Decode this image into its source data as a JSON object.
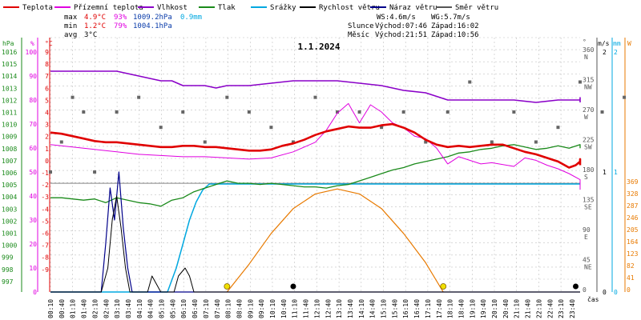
{
  "chart_data": {
    "type": "line",
    "title": "1.1.2024",
    "legend": [
      {
        "name": "Teplota",
        "color": "#e00000"
      },
      {
        "name": "Přízemní teplota",
        "color": "#e000e0"
      },
      {
        "name": "Vlhkost",
        "color": "#8a00c8"
      },
      {
        "name": "Tlak",
        "color": "#1a8a1a"
      },
      {
        "name": "Srážky",
        "color": "#00a8e0"
      },
      {
        "name": "Rychlost větru",
        "color": "#000000"
      },
      {
        "name": "Náraz větru",
        "color": "#00008a"
      },
      {
        "name": "Směr větru",
        "color": "#555555"
      }
    ],
    "stats": {
      "max": {
        "label": "max",
        "temp": "4.9°C",
        "hum": "93%",
        "press": "1009.2hPa",
        "rain": "0.9mm"
      },
      "min": {
        "label": "min",
        "temp": "1.2°C",
        "hum": "79%",
        "press": "1004.1hPa"
      },
      "avg": {
        "label": "avg",
        "temp": "3°C"
      }
    },
    "info": {
      "ws": "WS:4.6m/s",
      "wg": "WG:5.7m/s",
      "sun": "Slunce",
      "sun_rise": "Východ:07:46",
      "sun_set": "Západ:16:02",
      "moon": "Měsíc",
      "moon_rise": "Východ:21:51",
      "moon_set": "Západ:10:56"
    },
    "axes": {
      "hpa_title": "hPa",
      "hum_title": "%",
      "temp_title": "°C",
      "dir_title": "°",
      "wind_title": "m/s",
      "rain_title": "mm",
      "w_title": "W",
      "x_title": "čas",
      "hpa_ticks": [
        "1016",
        "1015",
        "1014",
        "1013",
        "1012",
        "1011",
        "1010",
        "1009",
        "1008",
        "1007",
        "1006",
        "1005",
        "1004",
        "1003",
        "1002",
        "1001",
        "1000",
        "999",
        "998",
        "997"
      ],
      "hum_ticks": [
        "100",
        "90",
        "80",
        "70",
        "60",
        "50",
        "40",
        "30",
        "20",
        "10",
        "0"
      ],
      "temp_ticks": [
        "9",
        "8",
        "7",
        "6",
        "5",
        "4",
        "3",
        "2",
        "1",
        "0",
        "-1",
        "-2",
        "-3",
        "-4",
        "-5",
        "-6",
        "-7",
        "-8",
        "-9"
      ],
      "dir_ticks": [
        {
          "deg": "360",
          "name": "N"
        },
        {
          "deg": "315",
          "name": "NW"
        },
        {
          "deg": "270",
          "name": "W"
        },
        {
          "deg": "225",
          "name": "SW"
        },
        {
          "deg": "180",
          "name": "S"
        },
        {
          "deg": "135",
          "name": "SE"
        },
        {
          "deg": "90",
          "name": "E"
        },
        {
          "deg": "45",
          "name": "NE"
        },
        {
          "deg": "0",
          "name": ""
        }
      ],
      "wind_ticks": [
        "2",
        "1",
        "0"
      ],
      "rain_ticks": [
        "2",
        "1",
        "0"
      ],
      "w_ticks": [
        "369",
        "328",
        "287",
        "246",
        "205",
        "164",
        "123",
        "82",
        "41",
        "0"
      ],
      "time_ticks": [
        "00:10",
        "00:40",
        "01:10",
        "01:40",
        "02:10",
        "02:40",
        "03:10",
        "03:40",
        "04:10",
        "04:40",
        "05:10",
        "05:40",
        "06:10",
        "06:40",
        "07:10",
        "07:40",
        "08:10",
        "08:40",
        "09:10",
        "09:40",
        "10:10",
        "10:40",
        "11:10",
        "11:40",
        "12:10",
        "12:40",
        "13:10",
        "13:40",
        "14:10",
        "14:40",
        "15:10",
        "15:40",
        "16:10",
        "16:40",
        "17:10",
        "17:40",
        "18:10",
        "18:40",
        "19:10",
        "19:40",
        "20:10",
        "20:40",
        "21:10",
        "21:40",
        "22:10",
        "22:40",
        "23:10",
        "23:40"
      ]
    },
    "x_range": [
      0,
      24
    ],
    "temp_range": [
      -9,
      10
    ],
    "hum_range": [
      0,
      100
    ],
    "press_range": [
      997,
      1016.5
    ],
    "dir_range": [
      0,
      360
    ],
    "solar_range": [
      0,
      369
    ],
    "series": {
      "temperature": [
        [
          0,
          4.2
        ],
        [
          0.5,
          4.1
        ],
        [
          1,
          3.9
        ],
        [
          1.5,
          3.7
        ],
        [
          2,
          3.5
        ],
        [
          2.5,
          3.4
        ],
        [
          3,
          3.4
        ],
        [
          3.5,
          3.3
        ],
        [
          4,
          3.2
        ],
        [
          4.5,
          3.1
        ],
        [
          5,
          3.0
        ],
        [
          5.5,
          3.0
        ],
        [
          6,
          3.1
        ],
        [
          6.5,
          3.1
        ],
        [
          7,
          3.0
        ],
        [
          7.5,
          3.0
        ],
        [
          8,
          2.9
        ],
        [
          8.5,
          2.8
        ],
        [
          9,
          2.7
        ],
        [
          9.5,
          2.7
        ],
        [
          10,
          2.8
        ],
        [
          10.5,
          3.1
        ],
        [
          11,
          3.3
        ],
        [
          11.5,
          3.6
        ],
        [
          12,
          4.0
        ],
        [
          12.5,
          4.3
        ],
        [
          13,
          4.5
        ],
        [
          13.5,
          4.7
        ],
        [
          14,
          4.6
        ],
        [
          14.5,
          4.6
        ],
        [
          15,
          4.8
        ],
        [
          15.5,
          4.9
        ],
        [
          16,
          4.6
        ],
        [
          16.5,
          4.2
        ],
        [
          17,
          3.6
        ],
        [
          17.5,
          3.2
        ],
        [
          18,
          3.0
        ],
        [
          18.5,
          3.1
        ],
        [
          19,
          3.0
        ],
        [
          19.5,
          3.1
        ],
        [
          20,
          3.2
        ],
        [
          20.5,
          3.2
        ],
        [
          21,
          2.9
        ],
        [
          21.5,
          2.6
        ],
        [
          22,
          2.4
        ],
        [
          22.5,
          2.1
        ],
        [
          23,
          1.8
        ],
        [
          23.5,
          1.3
        ],
        [
          23.8,
          1.5
        ],
        [
          24,
          1.8
        ],
        [
          24.5,
          1.6
        ],
        [
          25,
          1.9
        ],
        [
          25.5,
          2.0
        ],
        [
          26,
          1.7
        ],
        [
          26.5,
          1.5
        ]
      ],
      "ground_temperature": [
        [
          0,
          3.2
        ],
        [
          1,
          3.0
        ],
        [
          2,
          2.8
        ],
        [
          3,
          2.6
        ],
        [
          4,
          2.4
        ],
        [
          5,
          2.3
        ],
        [
          6,
          2.2
        ],
        [
          7,
          2.2
        ],
        [
          8,
          2.1
        ],
        [
          9,
          2.0
        ],
        [
          10,
          2.1
        ],
        [
          11,
          2.6
        ],
        [
          12,
          3.4
        ],
        [
          12.5,
          4.4
        ],
        [
          13,
          5.8
        ],
        [
          13.5,
          6.6
        ],
        [
          14,
          5.0
        ],
        [
          14.5,
          6.5
        ],
        [
          15,
          5.9
        ],
        [
          15.5,
          5.0
        ],
        [
          16,
          4.6
        ],
        [
          16.5,
          3.9
        ],
        [
          17,
          3.7
        ],
        [
          17.5,
          2.9
        ],
        [
          18,
          1.6
        ],
        [
          18.5,
          2.2
        ],
        [
          19,
          1.9
        ],
        [
          19.5,
          1.6
        ],
        [
          20,
          1.7
        ],
        [
          21,
          1.4
        ],
        [
          21.5,
          2.1
        ],
        [
          22,
          1.9
        ],
        [
          22.5,
          1.5
        ],
        [
          23,
          1.2
        ],
        [
          23.5,
          0.8
        ],
        [
          24,
          0.3
        ],
        [
          24.5,
          0.2
        ],
        [
          25,
          0.3
        ],
        [
          25.5,
          -0.5
        ],
        [
          26,
          -0.3
        ],
        [
          26.5,
          -0.4
        ]
      ],
      "humidity": [
        [
          0,
          92
        ],
        [
          3,
          92
        ],
        [
          3.5,
          91
        ],
        [
          4,
          90
        ],
        [
          4.5,
          89
        ],
        [
          5,
          88
        ],
        [
          5.5,
          88
        ],
        [
          6,
          86
        ],
        [
          7,
          86
        ],
        [
          7.5,
          85
        ],
        [
          8,
          86
        ],
        [
          9,
          86
        ],
        [
          10,
          87
        ],
        [
          11,
          88
        ],
        [
          12,
          88
        ],
        [
          13,
          88
        ],
        [
          14,
          87
        ],
        [
          15,
          86
        ],
        [
          16,
          84
        ],
        [
          17,
          83
        ],
        [
          18,
          80
        ],
        [
          19,
          80
        ],
        [
          20,
          80
        ],
        [
          21,
          80
        ],
        [
          22,
          79
        ],
        [
          23,
          80
        ],
        [
          24,
          80
        ],
        [
          25,
          81
        ],
        [
          26,
          81
        ],
        [
          26.5,
          79
        ]
      ],
      "pressure": [
        [
          0,
          1004.8
        ],
        [
          0.5,
          1004.8
        ],
        [
          1,
          1004.7
        ],
        [
          1.5,
          1004.6
        ],
        [
          2,
          1004.7
        ],
        [
          2.5,
          1004.4
        ],
        [
          3,
          1004.8
        ],
        [
          3.5,
          1004.6
        ],
        [
          4,
          1004.4
        ],
        [
          4.5,
          1004.3
        ],
        [
          5,
          1004.1
        ],
        [
          5.5,
          1004.6
        ],
        [
          6,
          1004.8
        ],
        [
          6.5,
          1005.3
        ],
        [
          7,
          1005.6
        ],
        [
          7.5,
          1005.9
        ],
        [
          8,
          1006.2
        ],
        [
          8.5,
          1006.0
        ],
        [
          9,
          1006.0
        ],
        [
          9.5,
          1005.9
        ],
        [
          10,
          1006.0
        ],
        [
          10.5,
          1005.9
        ],
        [
          11,
          1005.8
        ],
        [
          11.5,
          1005.7
        ],
        [
          12,
          1005.7
        ],
        [
          12.5,
          1005.6
        ],
        [
          13,
          1005.8
        ],
        [
          13.5,
          1005.9
        ],
        [
          14,
          1006.2
        ],
        [
          14.5,
          1006.5
        ],
        [
          15,
          1006.8
        ],
        [
          15.5,
          1007.1
        ],
        [
          16,
          1007.3
        ],
        [
          16.5,
          1007.6
        ],
        [
          17,
          1007.8
        ],
        [
          17.5,
          1008.0
        ],
        [
          18,
          1008.2
        ],
        [
          18.5,
          1008.5
        ],
        [
          19,
          1008.6
        ],
        [
          19.5,
          1008.8
        ],
        [
          20,
          1008.9
        ],
        [
          20.5,
          1009.1
        ],
        [
          21,
          1009.2
        ],
        [
          21.5,
          1009.0
        ],
        [
          22,
          1008.8
        ],
        [
          22.5,
          1008.9
        ],
        [
          23,
          1009.1
        ],
        [
          23.5,
          1008.9
        ],
        [
          24,
          1009.2
        ],
        [
          25,
          1009.1
        ],
        [
          26,
          1009.0
        ],
        [
          26.5,
          1008.9
        ]
      ],
      "rain": [
        [
          0,
          0
        ],
        [
          5.3,
          0
        ],
        [
          5.7,
          0.2
        ],
        [
          6.0,
          0.4
        ],
        [
          6.3,
          0.6
        ],
        [
          6.6,
          0.75
        ],
        [
          6.9,
          0.85
        ],
        [
          7.2,
          0.9
        ],
        [
          26.5,
          0.9
        ]
      ],
      "wind_speed": [
        [
          0,
          0
        ],
        [
          2.3,
          0
        ],
        [
          2.6,
          0.3
        ],
        [
          2.8,
          0.9
        ],
        [
          3.0,
          1.2
        ],
        [
          3.2,
          0.8
        ],
        [
          3.4,
          0.3
        ],
        [
          3.6,
          0
        ],
        [
          4.4,
          0
        ],
        [
          4.6,
          0.2
        ],
        [
          4.8,
          0.1
        ],
        [
          5.0,
          0
        ],
        [
          5.6,
          0
        ],
        [
          5.8,
          0.2
        ],
        [
          6.1,
          0.3
        ],
        [
          6.3,
          0.2
        ],
        [
          6.5,
          0
        ],
        [
          26.5,
          0
        ]
      ],
      "wind_gust": [
        [
          0,
          0
        ],
        [
          2.3,
          0
        ],
        [
          2.5,
          0.6
        ],
        [
          2.7,
          1.3
        ],
        [
          2.9,
          0.9
        ],
        [
          3.1,
          1.5
        ],
        [
          3.3,
          0.8
        ],
        [
          3.5,
          0.3
        ],
        [
          3.7,
          0
        ],
        [
          26.5,
          0
        ]
      ],
      "wind_dir": [
        [
          0,
          180
        ],
        [
          0.5,
          225
        ],
        [
          1,
          292
        ],
        [
          1.5,
          270
        ],
        [
          2,
          180
        ],
        [
          3,
          270
        ],
        [
          4,
          292
        ],
        [
          5,
          247
        ],
        [
          6,
          270
        ],
        [
          7,
          225
        ],
        [
          8,
          292
        ],
        [
          9,
          270
        ],
        [
          10,
          247
        ],
        [
          11,
          225
        ],
        [
          12,
          292
        ],
        [
          13,
          270
        ],
        [
          14,
          270
        ],
        [
          15,
          247
        ],
        [
          16,
          270
        ],
        [
          17,
          225
        ],
        [
          18,
          270
        ],
        [
          19,
          315
        ],
        [
          20,
          225
        ],
        [
          21,
          270
        ],
        [
          22,
          225
        ],
        [
          23,
          247
        ],
        [
          24,
          315
        ],
        [
          25,
          270
        ],
        [
          26,
          292
        ]
      ],
      "solar_radiation": [
        [
          8,
          0
        ],
        [
          9,
          95
        ],
        [
          10,
          200
        ],
        [
          11,
          285
        ],
        [
          12,
          335
        ],
        [
          13,
          352
        ],
        [
          14,
          335
        ],
        [
          15,
          285
        ],
        [
          16,
          200
        ],
        [
          17,
          100
        ],
        [
          17.8,
          0
        ]
      ]
    },
    "sun_markers": [
      8.0,
      17.8
    ],
    "moon_markers": [
      11.0,
      23.8
    ]
  }
}
